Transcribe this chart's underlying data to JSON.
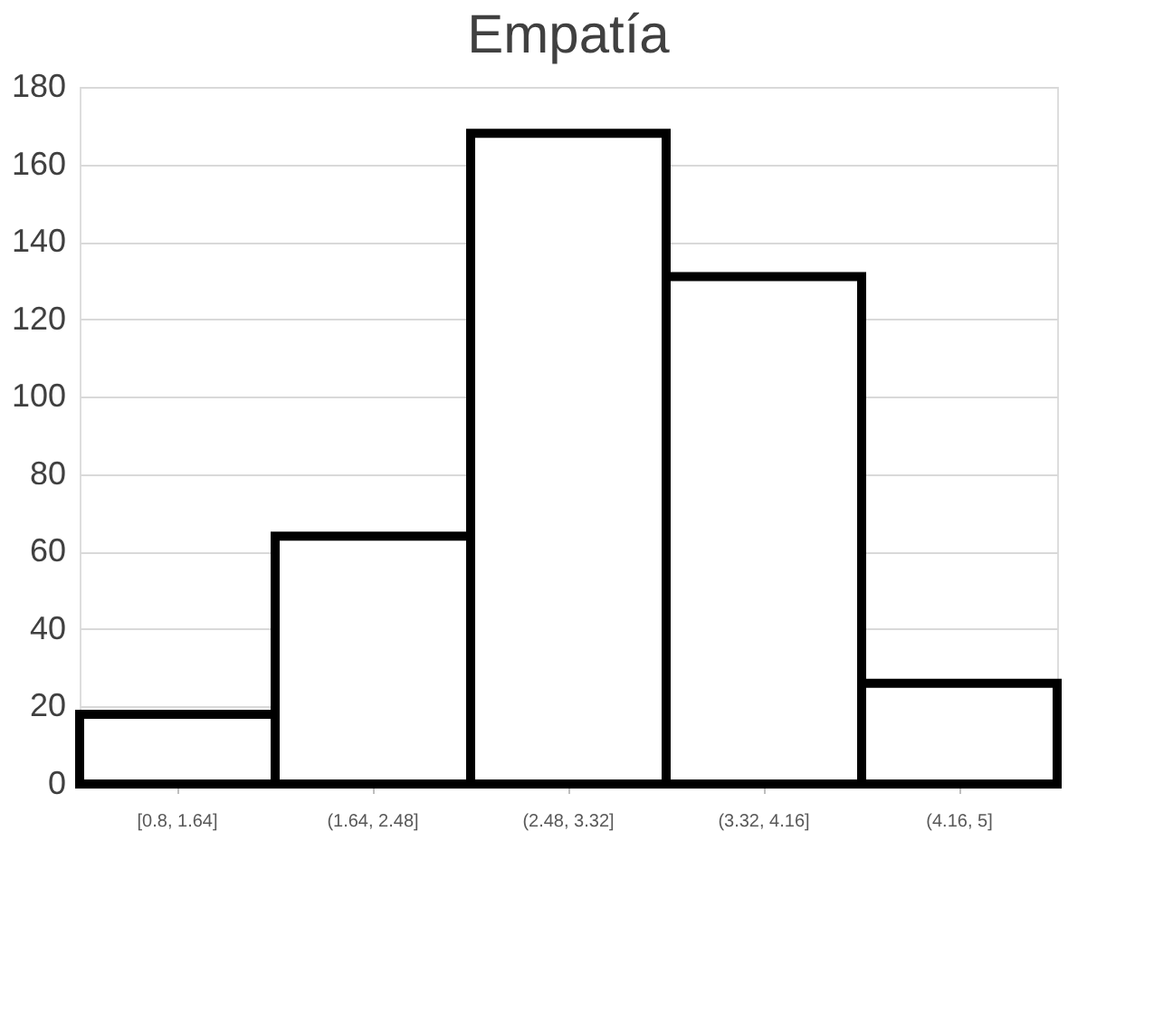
{
  "chart_data": {
    "type": "bar",
    "title": "Empatía",
    "categories": [
      "[0.8, 1.64]",
      "(1.64, 2.48]",
      "(2.48, 3.32]",
      "(3.32, 4.16]",
      "(4.16, 5]"
    ],
    "values": [
      18,
      64,
      168,
      131,
      26
    ],
    "color": "#ffffff",
    "ylim": [
      0,
      180
    ],
    "yticks": [
      0,
      20,
      40,
      60,
      80,
      100,
      120,
      140,
      160,
      180
    ],
    "grid": "y"
  }
}
